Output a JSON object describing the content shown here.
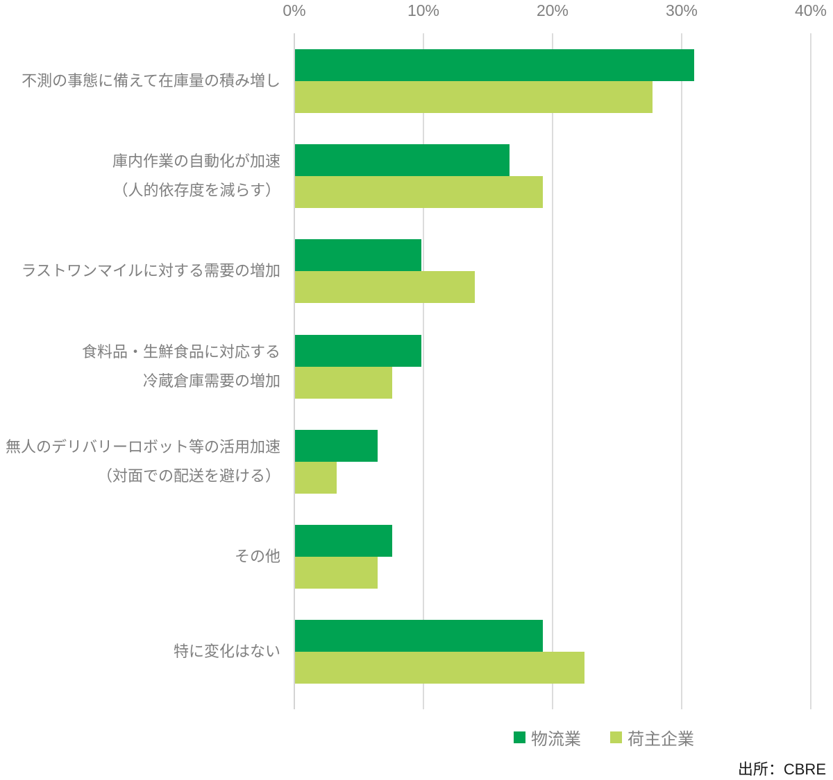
{
  "chart_data": {
    "type": "bar",
    "orientation": "horizontal",
    "title": "",
    "xlabel": "",
    "ylabel": "",
    "xlim": [
      0,
      40
    ],
    "x_ticks": [
      "0%",
      "10%",
      "20%",
      "30%",
      "40%"
    ],
    "x_tick_values": [
      0,
      10,
      20,
      30,
      40
    ],
    "grid": true,
    "categories": [
      [
        "不測の事態に備えて在庫量の積み増し"
      ],
      [
        "庫内作業の自動化が加速",
        "（人的依存度を減らす）"
      ],
      [
        "ラストワンマイルに対する需要の増加"
      ],
      [
        "食料品・生鮮食品に対応する",
        "冷蔵倉庫需要の増加"
      ],
      [
        "無人のデリバリーロボット等の活用加速",
        "（対面での配送を避ける）"
      ],
      [
        "その他"
      ],
      [
        "特に変化はない"
      ]
    ],
    "series": [
      {
        "name": "物流業",
        "color": "#00A352",
        "values": [
          30.9,
          16.6,
          9.8,
          9.8,
          6.4,
          7.5,
          19.2
        ]
      },
      {
        "name": "荷主企業",
        "color": "#BDD65C",
        "values": [
          27.7,
          19.2,
          13.9,
          7.5,
          3.2,
          6.4,
          22.4
        ]
      }
    ],
    "legend_position": "bottom",
    "source": "出所：CBRE"
  },
  "colors": {
    "series_dark": "#00A352",
    "series_light": "#BDD65C",
    "gridline": "#dcdcdc",
    "axis_text": "#808080",
    "label_text": "#7f7f7f",
    "source_text": "#1a1a1a",
    "background": "#ffffff"
  }
}
